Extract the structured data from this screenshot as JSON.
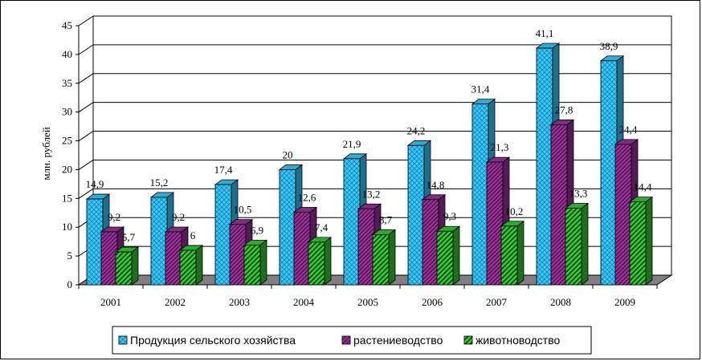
{
  "chart_data": {
    "type": "bar",
    "categories": [
      "2001",
      "2002",
      "2003",
      "2004",
      "2005",
      "2006",
      "2007",
      "2008",
      "2009"
    ],
    "series": [
      {
        "name": "Продукция сельского хозяйства",
        "values": [
          14.9,
          15.2,
          17.4,
          20,
          21.9,
          24.2,
          31.4,
          41.1,
          38.9
        ],
        "labels": [
          "14,9",
          "15,2",
          "17,4",
          "20",
          "21,9",
          "24,2",
          "31,4",
          "41,1",
          "38,9"
        ],
        "color": "#33CCFF"
      },
      {
        "name": "растениеводство",
        "values": [
          9.2,
          9.2,
          10.5,
          12.6,
          13.2,
          14.8,
          21.3,
          27.8,
          24.4
        ],
        "labels": [
          "9,2",
          "9,2",
          "10,5",
          "12,6",
          "13,2",
          "14,8",
          "21,3",
          "27,8",
          "24,4"
        ],
        "color": "#993399"
      },
      {
        "name": "животноводство",
        "values": [
          5.7,
          6,
          6.9,
          7.4,
          8.7,
          9.3,
          10.2,
          13.3,
          14.4
        ],
        "labels": [
          "5,7",
          "6",
          "6,9",
          "7,4",
          "8,7",
          "9,3",
          "10,2",
          "13,3",
          "14,4"
        ],
        "color": "#33CC33"
      }
    ],
    "ylabel": "млн. рублей",
    "xlabel": "",
    "ylim": [
      0,
      45
    ],
    "yticks": [
      0,
      5,
      10,
      15,
      20,
      25,
      30,
      35,
      40,
      45
    ],
    "grid": true,
    "legend": "bottom"
  }
}
